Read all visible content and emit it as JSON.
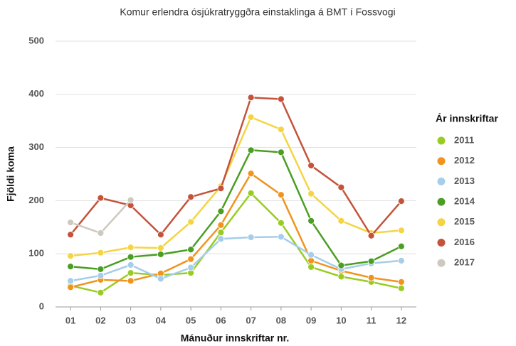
{
  "chart_data": {
    "type": "line",
    "title": "Komur erlendra ósjúkratryggðra einstaklinga á BMT í Fossvogi",
    "xlabel": "Mánuður innskriftar nr.",
    "ylabel": "Fjöldi koma",
    "legend_title": "Ár innskriftar",
    "categories": [
      "01",
      "02",
      "03",
      "04",
      "05",
      "06",
      "07",
      "08",
      "09",
      "10",
      "11",
      "12"
    ],
    "ylim": [
      0,
      500
    ],
    "yticks": [
      0,
      100,
      200,
      300,
      400,
      500
    ],
    "grid": true,
    "legend": "right",
    "series": [
      {
        "name": "2011",
        "color": "#99cc22",
        "values": [
          40,
          27,
          64,
          60,
          64,
          140,
          214,
          158,
          75,
          57,
          47,
          35
        ]
      },
      {
        "name": "2012",
        "color": "#f0941e",
        "values": [
          37,
          51,
          49,
          63,
          90,
          154,
          251,
          211,
          87,
          68,
          55,
          47
        ]
      },
      {
        "name": "2013",
        "color": "#a6cdea",
        "values": [
          49,
          59,
          79,
          53,
          74,
          128,
          131,
          132,
          98,
          71,
          82,
          87
        ]
      },
      {
        "name": "2014",
        "color": "#4a9e22",
        "values": [
          76,
          71,
          94,
          99,
          108,
          180,
          295,
          291,
          162,
          78,
          86,
          114
        ]
      },
      {
        "name": "2015",
        "color": "#f5d444",
        "values": [
          96,
          102,
          112,
          111,
          160,
          227,
          357,
          334,
          213,
          162,
          139,
          144
        ]
      },
      {
        "name": "2016",
        "color": "#c4533a",
        "values": [
          136,
          205,
          191,
          136,
          207,
          223,
          394,
          391,
          266,
          225,
          134,
          199
        ]
      },
      {
        "name": "2017",
        "color": "#cdc9bf",
        "values": [
          159,
          139,
          201,
          null,
          null,
          null,
          null,
          null,
          null,
          null,
          null,
          null
        ]
      }
    ]
  }
}
